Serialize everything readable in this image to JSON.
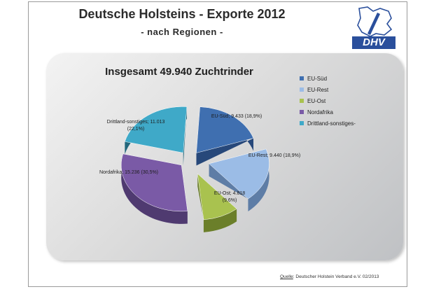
{
  "header": {
    "title": "Deutsche Holsteins - Exporte 2012",
    "subtitle": "- nach Regionen -",
    "logo_text": "DHV"
  },
  "chart_data": {
    "type": "pie",
    "title": "Insgesamt  49.940 Zuchtrinder",
    "total": 49940,
    "slices": [
      {
        "name": "EU-Süd",
        "value": 9433,
        "label_1": "EU-Süd;  9.433 (18,9%)",
        "label_2": "",
        "color": "#3f6fb0",
        "side": "#27487a",
        "explode": 12
      },
      {
        "name": "EU-Rest",
        "value": 9440,
        "label_1": "EU-Rest;  9.440 (18,9%)",
        "label_2": "",
        "color": "#9bbce6",
        "side": "#5e7da6",
        "explode": 22
      },
      {
        "name": "EU-Ost",
        "value": 4818,
        "label_1": "EU-Ost;  4.818",
        "label_2": "(9,6%)",
        "color": "#a9c24f",
        "side": "#6b7f2a",
        "explode": 22
      },
      {
        "name": "Nordafrika",
        "value": 15236,
        "label_1": "Nordafrika;  15.236 (30,5%)",
        "label_2": "",
        "color": "#7a5aa6",
        "side": "#4f3a70",
        "explode": 12
      },
      {
        "name": "Drittland-sonstiges",
        "value": 11013,
        "label_1": "Drittland-sonstiges;  11.013",
        "label_2": "(22,1%)",
        "color": "#3fa9c8",
        "side": "#22677b",
        "explode": 12
      }
    ],
    "legend": [
      "EU-Süd",
      "EU-Rest",
      "EU-Ost",
      "Nordafrika",
      "Drittland-sonstiges-"
    ],
    "legend_placement": "right"
  },
  "source": {
    "key": "Quelle",
    "text": ": Deutscher Holstein Verband e.V. 02/2013"
  }
}
